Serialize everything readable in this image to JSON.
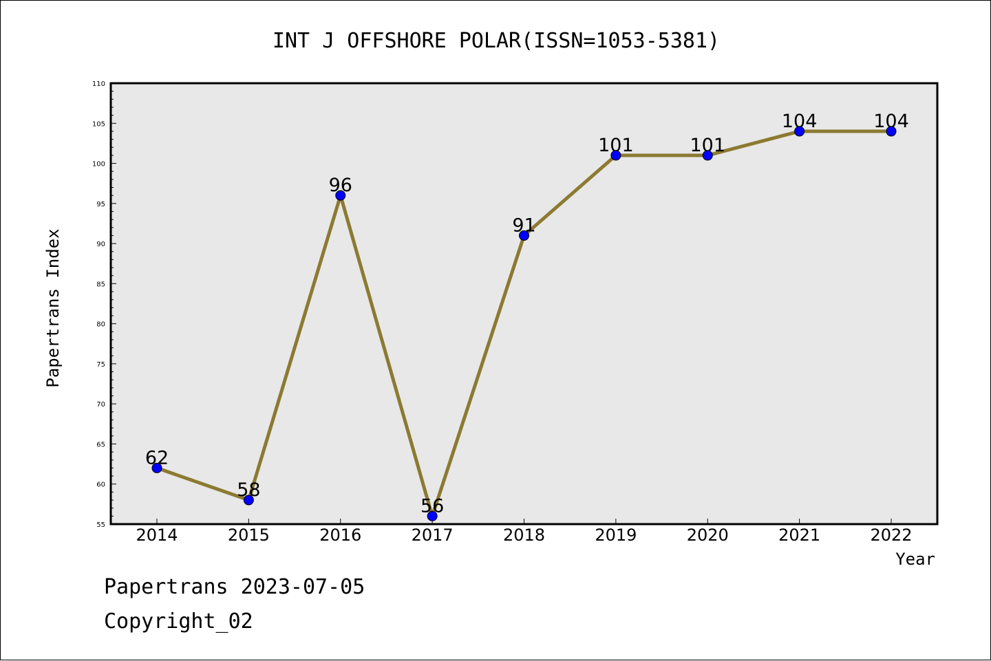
{
  "chart_data": {
    "type": "line",
    "title": "INT J OFFSHORE POLAR(ISSN=1053-5381)",
    "xlabel": "Year",
    "ylabel": "Papertrans Index",
    "categories": [
      "2014",
      "2015",
      "2016",
      "2017",
      "2018",
      "2019",
      "2020",
      "2021",
      "2022"
    ],
    "series": [
      {
        "values": [
          62,
          58,
          96,
          56,
          91,
          101,
          101,
          104,
          104
        ]
      }
    ],
    "data_labels": [
      "62",
      "58",
      "96",
      "56",
      "91",
      "101",
      "101",
      "104",
      "104"
    ],
    "ylim": [
      55,
      110
    ],
    "yticks": [
      55,
      60,
      65,
      70,
      75,
      80,
      85,
      90,
      95,
      100,
      105,
      110
    ],
    "ytick_labels": [
      "55",
      "60",
      "65",
      "70",
      "75",
      "80",
      "85",
      "90",
      "95",
      "100",
      "105",
      "110"
    ],
    "grid": false,
    "line_color": "#8c7a32",
    "marker_color": "#0000ff",
    "plot_background": "#e8e8e8"
  },
  "footer": {
    "line1": "Papertrans 2023-07-05",
    "line2": "Copyright_02"
  }
}
